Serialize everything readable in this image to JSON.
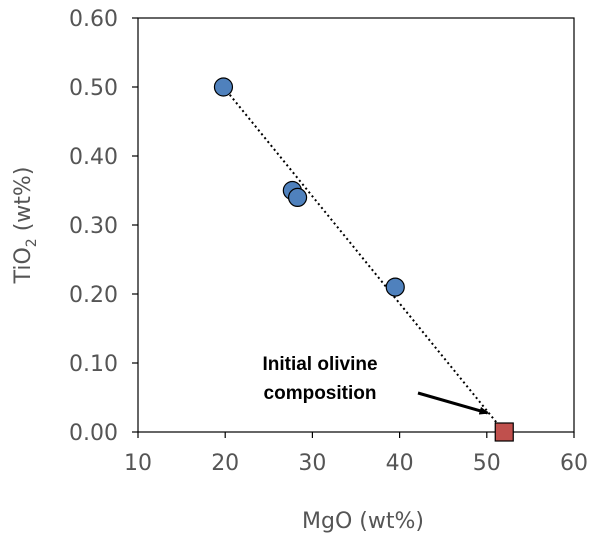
{
  "chart_data": {
    "type": "scatter",
    "title": "",
    "xlabel": "MgO (wt%)",
    "ylabel": "TiO2 (wt%)",
    "ylabel_main": "TiO",
    "ylabel_sub": "2",
    "ylabel_rest": " (wt%)",
    "xlim": [
      10,
      60
    ],
    "ylim": [
      0,
      0.6
    ],
    "x_ticks": [
      10,
      20,
      30,
      40,
      50,
      60
    ],
    "y_ticks": [
      0,
      0.1,
      0.2,
      0.3,
      0.4,
      0.5,
      0.6
    ],
    "x_tick_labels": [
      "10",
      "20",
      "30",
      "40",
      "50",
      "60"
    ],
    "y_tick_labels": [
      "0.00",
      "0.10",
      "0.20",
      "0.30",
      "0.40",
      "0.50",
      "0.60"
    ],
    "grid": false,
    "series": [
      {
        "marker": "circle",
        "color": "#4f81bd",
        "points": [
          {
            "x": 19.8,
            "y": 0.5
          },
          {
            "x": 27.7,
            "y": 0.35
          },
          {
            "x": 28.3,
            "y": 0.34
          },
          {
            "x": 39.5,
            "y": 0.21
          }
        ]
      },
      {
        "marker": "square",
        "color": "#c0504d",
        "points": [
          {
            "x": 52.0,
            "y": 0.0
          }
        ]
      }
    ],
    "trend_line": {
      "style": "dotted",
      "color": "#000000",
      "from": {
        "x": 19.8,
        "y": 0.5
      },
      "to": {
        "x": 52.0,
        "y": 0.0
      }
    },
    "annotation": {
      "lines": [
        "Initial olivine",
        "composition"
      ],
      "arrow_to": {
        "x": 51.0,
        "y": 0.003
      }
    }
  }
}
